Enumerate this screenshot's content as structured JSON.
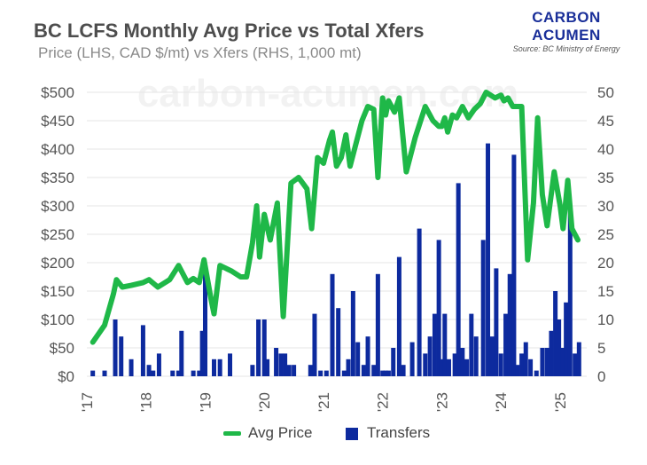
{
  "header": {
    "title": "BC LCFS Monthly Avg Price vs Total Xfers",
    "subtitle": "Price (LHS, CAD $/mt) vs Xfers (RHS, 1,000 mt)"
  },
  "brand": {
    "line1": "CARBON",
    "line2": "ACUMEN",
    "source": "Source: BC Ministry of Energy",
    "color": "#1a2f99"
  },
  "watermark": "carbon-acumen.com",
  "legend": {
    "price_label": "Avg Price",
    "transfers_label": "Transfers"
  },
  "colors": {
    "price": "#1fb848",
    "transfers": "#0d2a9e",
    "axis_text": "#555555",
    "grid": "#e6e6e6"
  },
  "chart_data": {
    "type": "bar+line",
    "x_ticks": [
      "'17",
      "'18",
      "'19",
      "'20",
      "'21",
      "'22",
      "'23",
      "'24",
      "'25"
    ],
    "y_left": {
      "ticks": [
        "$0",
        "$50",
        "$100",
        "$150",
        "$200",
        "$250",
        "$300",
        "$350",
        "$400",
        "$450",
        "$500"
      ],
      "range": [
        0,
        500
      ]
    },
    "y_right": {
      "ticks": [
        "0",
        "5",
        "10",
        "15",
        "20",
        "25",
        "30",
        "35",
        "40",
        "45",
        "50"
      ],
      "range": [
        0,
        50
      ]
    },
    "series": [
      {
        "name": "Avg Price",
        "type": "line",
        "axis": "left",
        "points": [
          [
            2017.1,
            60
          ],
          [
            2017.3,
            90
          ],
          [
            2017.45,
            145
          ],
          [
            2017.5,
            170
          ],
          [
            2017.6,
            157
          ],
          [
            2017.75,
            160
          ],
          [
            2017.95,
            165
          ],
          [
            2018.05,
            170
          ],
          [
            2018.2,
            157
          ],
          [
            2018.4,
            170
          ],
          [
            2018.55,
            195
          ],
          [
            2018.7,
            165
          ],
          [
            2018.8,
            172
          ],
          [
            2018.9,
            165
          ],
          [
            2018.98,
            205
          ],
          [
            2019.1,
            135
          ],
          [
            2019.15,
            110
          ],
          [
            2019.25,
            195
          ],
          [
            2019.45,
            185
          ],
          [
            2019.6,
            175
          ],
          [
            2019.7,
            175
          ],
          [
            2019.8,
            235
          ],
          [
            2019.87,
            300
          ],
          [
            2019.92,
            210
          ],
          [
            2020.0,
            285
          ],
          [
            2020.1,
            240
          ],
          [
            2020.22,
            305
          ],
          [
            2020.32,
            105
          ],
          [
            2020.45,
            340
          ],
          [
            2020.58,
            350
          ],
          [
            2020.72,
            330
          ],
          [
            2020.8,
            260
          ],
          [
            2020.9,
            385
          ],
          [
            2021.0,
            375
          ],
          [
            2021.1,
            415
          ],
          [
            2021.15,
            430
          ],
          [
            2021.22,
            370
          ],
          [
            2021.3,
            385
          ],
          [
            2021.38,
            425
          ],
          [
            2021.45,
            370
          ],
          [
            2021.55,
            410
          ],
          [
            2021.65,
            450
          ],
          [
            2021.75,
            475
          ],
          [
            2021.85,
            470
          ],
          [
            2021.92,
            350
          ],
          [
            2022.0,
            490
          ],
          [
            2022.05,
            460
          ],
          [
            2022.1,
            485
          ],
          [
            2022.2,
            465
          ],
          [
            2022.28,
            490
          ],
          [
            2022.4,
            360
          ],
          [
            2022.55,
            420
          ],
          [
            2022.72,
            475
          ],
          [
            2022.85,
            450
          ],
          [
            2022.95,
            440
          ],
          [
            2023.0,
            440
          ],
          [
            2023.05,
            455
          ],
          [
            2023.1,
            430
          ],
          [
            2023.18,
            460
          ],
          [
            2023.25,
            455
          ],
          [
            2023.35,
            475
          ],
          [
            2023.45,
            455
          ],
          [
            2023.55,
            470
          ],
          [
            2023.65,
            480
          ],
          [
            2023.75,
            500
          ],
          [
            2023.9,
            490
          ],
          [
            2024.0,
            495
          ],
          [
            2024.05,
            485
          ],
          [
            2024.12,
            490
          ],
          [
            2024.2,
            475
          ],
          [
            2024.35,
            475
          ],
          [
            2024.45,
            205
          ],
          [
            2024.55,
            305
          ],
          [
            2024.62,
            455
          ],
          [
            2024.7,
            320
          ],
          [
            2024.78,
            265
          ],
          [
            2024.9,
            360
          ],
          [
            2025.0,
            300
          ],
          [
            2025.05,
            260
          ],
          [
            2025.13,
            345
          ],
          [
            2025.2,
            260
          ],
          [
            2025.3,
            240
          ]
        ]
      },
      {
        "name": "Transfers",
        "type": "bar",
        "axis": "right",
        "points": [
          [
            2017.1,
            1
          ],
          [
            2017.3,
            1
          ],
          [
            2017.48,
            10
          ],
          [
            2017.58,
            7
          ],
          [
            2017.75,
            3
          ],
          [
            2017.95,
            9
          ],
          [
            2018.05,
            2
          ],
          [
            2018.12,
            1
          ],
          [
            2018.22,
            4
          ],
          [
            2018.45,
            1
          ],
          [
            2018.55,
            1
          ],
          [
            2018.6,
            8
          ],
          [
            2018.8,
            1
          ],
          [
            2018.9,
            1
          ],
          [
            2018.95,
            8
          ],
          [
            2019.0,
            19
          ],
          [
            2019.15,
            3
          ],
          [
            2019.25,
            3
          ],
          [
            2019.42,
            4
          ],
          [
            2019.8,
            2
          ],
          [
            2019.9,
            10
          ],
          [
            2020.0,
            10
          ],
          [
            2020.05,
            3
          ],
          [
            2020.2,
            5
          ],
          [
            2020.28,
            4
          ],
          [
            2020.35,
            4
          ],
          [
            2020.42,
            2
          ],
          [
            2020.5,
            2
          ],
          [
            2020.78,
            2
          ],
          [
            2020.85,
            11
          ],
          [
            2020.95,
            1
          ],
          [
            2021.05,
            1
          ],
          [
            2021.15,
            18
          ],
          [
            2021.25,
            12
          ],
          [
            2021.35,
            1
          ],
          [
            2021.42,
            3
          ],
          [
            2021.5,
            15
          ],
          [
            2021.58,
            6
          ],
          [
            2021.68,
            2
          ],
          [
            2021.75,
            7
          ],
          [
            2021.85,
            2
          ],
          [
            2021.92,
            18
          ],
          [
            2022.0,
            1
          ],
          [
            2022.05,
            1
          ],
          [
            2022.1,
            1
          ],
          [
            2022.18,
            5
          ],
          [
            2022.28,
            21
          ],
          [
            2022.35,
            2
          ],
          [
            2022.5,
            6
          ],
          [
            2022.62,
            26
          ],
          [
            2022.72,
            4
          ],
          [
            2022.8,
            7
          ],
          [
            2022.88,
            11
          ],
          [
            2022.95,
            24
          ],
          [
            2023.0,
            3
          ],
          [
            2023.05,
            11
          ],
          [
            2023.12,
            3
          ],
          [
            2023.22,
            4
          ],
          [
            2023.28,
            34
          ],
          [
            2023.35,
            5
          ],
          [
            2023.42,
            3
          ],
          [
            2023.5,
            11
          ],
          [
            2023.58,
            7
          ],
          [
            2023.7,
            24
          ],
          [
            2023.78,
            41
          ],
          [
            2023.85,
            7
          ],
          [
            2023.92,
            19
          ],
          [
            2024.0,
            4
          ],
          [
            2024.08,
            11
          ],
          [
            2024.15,
            18
          ],
          [
            2024.22,
            39
          ],
          [
            2024.28,
            2
          ],
          [
            2024.35,
            4
          ],
          [
            2024.42,
            6
          ],
          [
            2024.5,
            3
          ],
          [
            2024.6,
            1
          ],
          [
            2024.7,
            5
          ],
          [
            2024.78,
            5
          ],
          [
            2024.85,
            8
          ],
          [
            2024.92,
            15
          ],
          [
            2024.98,
            10
          ],
          [
            2025.05,
            5
          ],
          [
            2025.1,
            13
          ],
          [
            2025.17,
            30
          ],
          [
            2025.25,
            4
          ],
          [
            2025.32,
            6
          ]
        ]
      }
    ]
  }
}
